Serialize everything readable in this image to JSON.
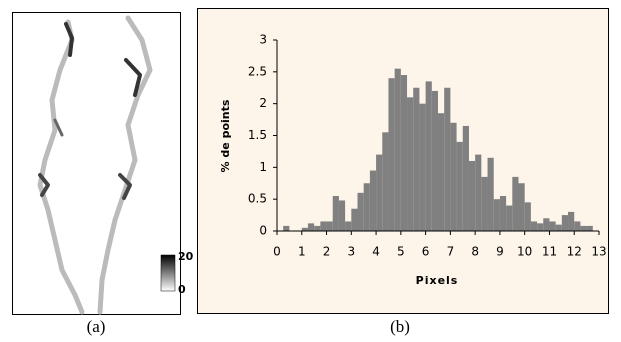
{
  "panel_a": {
    "caption": "(a)",
    "colorbar_max": 20,
    "colorbar_min": 0
  },
  "chart_data": {
    "type": "histogram",
    "caption": "(b)",
    "x_label": "Pixels",
    "y_label": "% de points",
    "bins": [
      0,
      0.25,
      0.5,
      0.75,
      1,
      1.25,
      1.5,
      1.75,
      2,
      2.25,
      2.5,
      2.75,
      3,
      3.25,
      3.5,
      3.75,
      4,
      4.25,
      4.5,
      4.75,
      5,
      5.25,
      5.5,
      5.75,
      6,
      6.25,
      6.5,
      6.75,
      7,
      7.25,
      7.5,
      7.75,
      8,
      8.25,
      8.5,
      8.75,
      9,
      9.25,
      9.5,
      9.75,
      10,
      10.25,
      10.5,
      10.75,
      11,
      11.25,
      11.5,
      11.75,
      12,
      12.25,
      12.5,
      12.75,
      13
    ],
    "values": [
      0,
      0.08,
      0,
      0,
      0.05,
      0.12,
      0.08,
      0.15,
      0.15,
      0.55,
      0.48,
      0.15,
      0.35,
      0.6,
      0.75,
      0.95,
      1.2,
      1.55,
      2.4,
      2.55,
      2.45,
      2.1,
      2.25,
      2.0,
      2.35,
      2.2,
      1.85,
      2.25,
      1.7,
      1.4,
      1.65,
      1.1,
      1.2,
      0.85,
      1.15,
      0.5,
      0.55,
      0.4,
      0.85,
      0.75,
      0.45,
      0.15,
      0.12,
      0.2,
      0.15,
      0.1,
      0.25,
      0.3,
      0.15,
      0.08,
      0.08,
      0
    ],
    "color": "#808080",
    "xlim": [
      0,
      13
    ],
    "xticks": [
      0,
      1,
      2,
      3,
      4,
      5,
      6,
      7,
      8,
      9,
      10,
      11,
      12,
      13
    ],
    "ylim": [
      0,
      3
    ],
    "yticks": [
      0,
      0.5,
      1,
      1.5,
      2,
      2.5,
      3
    ]
  }
}
